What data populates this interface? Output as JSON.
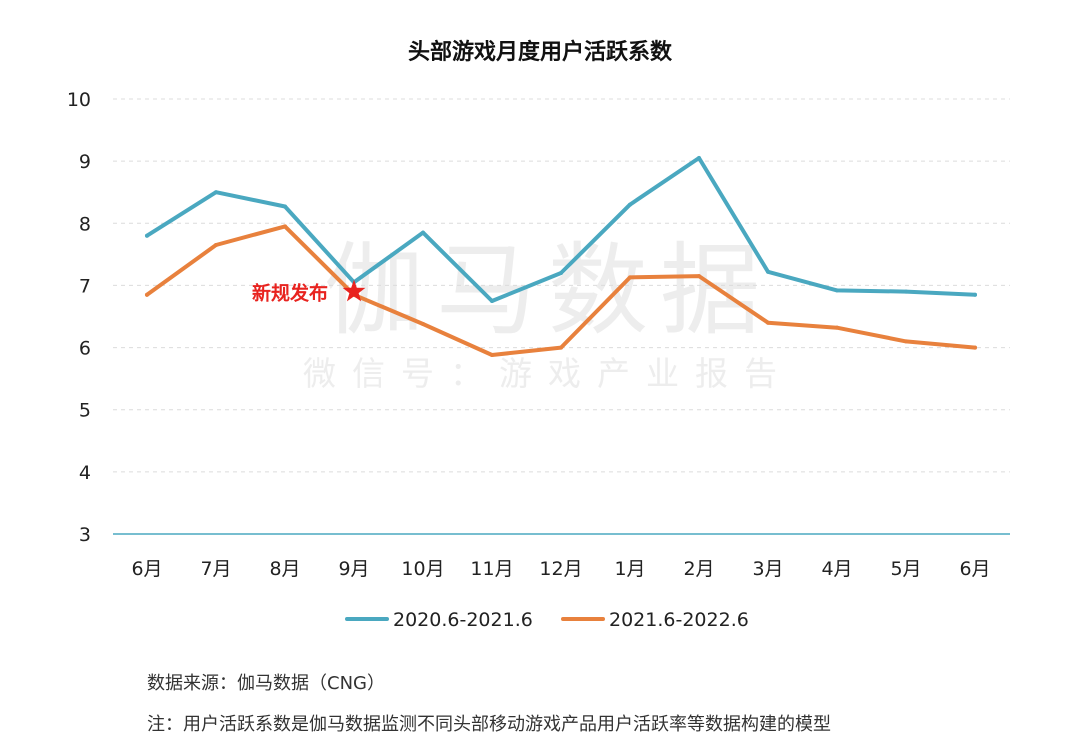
{
  "chart_data": {
    "type": "line",
    "title": "头部游戏月度用户活跃系数",
    "categories": [
      "6月",
      "7月",
      "8月",
      "9月",
      "10月",
      "11月",
      "12月",
      "1月",
      "2月",
      "3月",
      "4月",
      "5月",
      "6月"
    ],
    "ylim": [
      3,
      10
    ],
    "yticks": [
      "10",
      "9",
      "8",
      "7",
      "6",
      "5",
      "4",
      "3"
    ],
    "grid": true,
    "series": [
      {
        "name": "2020.6-2021.6",
        "color": "#4aa8c0",
        "values": [
          7.8,
          8.5,
          8.27,
          7.05,
          7.85,
          6.75,
          7.2,
          8.3,
          9.05,
          7.22,
          6.92,
          6.9,
          6.85
        ]
      },
      {
        "name": "2021.6-2022.6",
        "color": "#e8813d",
        "values": [
          6.85,
          7.65,
          7.95,
          6.85,
          6.38,
          5.88,
          6.0,
          7.13,
          7.15,
          6.4,
          6.32,
          6.1,
          6.0
        ]
      }
    ],
    "annotation": {
      "text": "新规发布",
      "category_index": 3,
      "value": 6.9,
      "marker": "star",
      "color": "#e8231f"
    },
    "legend_position": "bottom"
  },
  "watermark": {
    "main": "伽马数据",
    "sub": "微信号：游戏产业报告"
  },
  "notes": {
    "source": "数据来源：伽马数据（CNG）",
    "footnote": "注：用户活跃系数是伽马数据监测不同头部移动游戏产品用户活跃率等数据构建的模型"
  }
}
